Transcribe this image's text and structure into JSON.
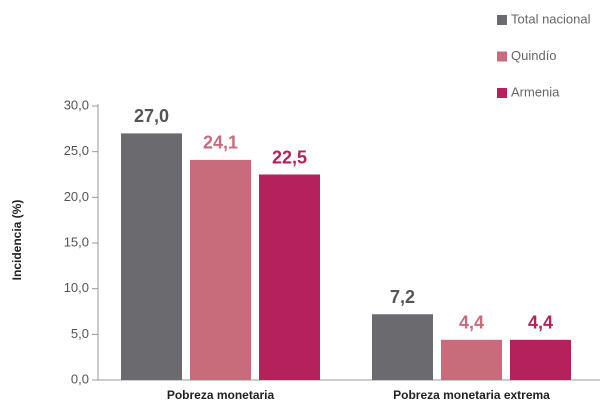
{
  "chart_data": {
    "type": "bar",
    "y_label": "Incidencia (%)",
    "categories": [
      "Pobreza monetaria",
      "Pobreza monetaria extrema"
    ],
    "series": [
      {
        "name": "Total nacional",
        "color": "#6a6a6f",
        "values": [
          27.0,
          7.2
        ],
        "value_labels": [
          "27,0",
          "7,2"
        ]
      },
      {
        "name": "Quindío",
        "color": "#c86b7b",
        "values": [
          24.1,
          4.4
        ],
        "value_labels": [
          "24,1",
          "4,4"
        ]
      },
      {
        "name": "Armenia",
        "color": "#b5215a",
        "values": [
          22.5,
          4.4
        ],
        "value_labels": [
          "22,5",
          "4,4"
        ]
      }
    ],
    "ylim": [
      0,
      30
    ],
    "yticks": [
      {
        "value": 0,
        "label": "0,0"
      },
      {
        "value": 5,
        "label": "5,0"
      },
      {
        "value": 10,
        "label": "10,0"
      },
      {
        "value": 15,
        "label": "15,0"
      },
      {
        "value": 20,
        "label": "20,0"
      },
      {
        "value": 25,
        "label": "25,0"
      },
      {
        "value": 30,
        "label": "30,0"
      }
    ],
    "legend": "top-right"
  }
}
